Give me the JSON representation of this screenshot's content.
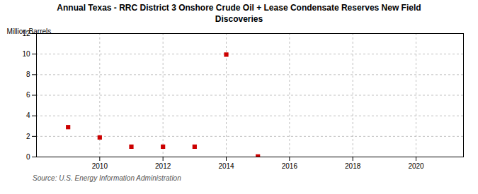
{
  "chart_data": {
    "type": "scatter",
    "title": "Annual Texas - RRC District 3 Onshore Crude Oil + Lease Condensate Reserves New Field\nDiscoveries",
    "ylabel": "Million Barrels",
    "source": "Source: U.S. Energy Information Administration",
    "x": [
      2009,
      2010,
      2011,
      2012,
      2013,
      2014,
      2015
    ],
    "values": [
      2.9,
      1.9,
      1.0,
      1.0,
      1.0,
      9.95,
      0.05
    ],
    "color": "#cc0000",
    "marker": "square",
    "xlim": [
      2008.0,
      2021.5
    ],
    "xticks": [
      2010,
      2012,
      2014,
      2016,
      2018,
      2020
    ],
    "ylim": [
      0,
      12
    ],
    "yticks": [
      0,
      2,
      4,
      6,
      8,
      10,
      12
    ],
    "grid": true
  }
}
